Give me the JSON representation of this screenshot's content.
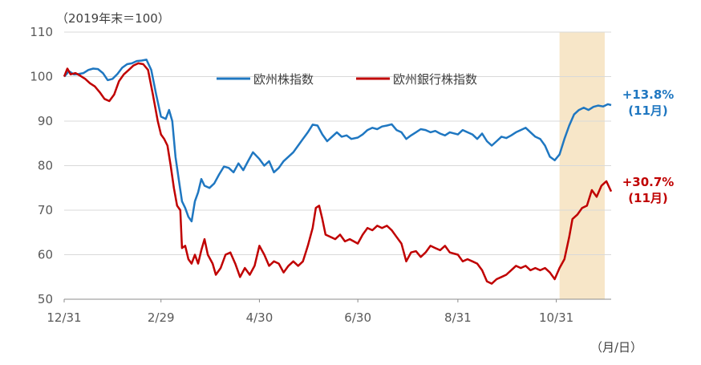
{
  "chart_data": {
    "type": "line",
    "y_unit_label": "（2019年末＝100）",
    "x_unit_label": "（月/日）",
    "ylim": [
      50,
      110
    ],
    "yticks": [
      "50",
      "60",
      "70",
      "80",
      "90",
      "100",
      "110"
    ],
    "xtick_labels": [
      "12/31",
      "2/29",
      "4/30",
      "6/30",
      "8/31",
      "10/31"
    ],
    "x_range": [
      "12/31",
      "12/04"
    ],
    "grid": "horizontal",
    "legend_position": "top-center",
    "highlight_period": {
      "start": "11/02",
      "end": "11/30",
      "color": "#f7e6c8"
    },
    "series": [
      {
        "name": "欧州株指数",
        "color": "#1f77c1",
        "points": [
          [
            "12/31",
            100.0
          ],
          [
            "01/03",
            101.2
          ],
          [
            "01/06",
            100.5
          ],
          [
            "01/09",
            100.6
          ],
          [
            "01/12",
            100.8
          ],
          [
            "01/15",
            101.5
          ],
          [
            "01/18",
            101.8
          ],
          [
            "01/21",
            101.7
          ],
          [
            "01/24",
            100.8
          ],
          [
            "01/27",
            99.2
          ],
          [
            "01/30",
            99.5
          ],
          [
            "02/02",
            100.6
          ],
          [
            "02/05",
            102.0
          ],
          [
            "02/08",
            102.8
          ],
          [
            "02/11",
            103.0
          ],
          [
            "02/14",
            103.5
          ],
          [
            "02/17",
            103.6
          ],
          [
            "02/20",
            103.8
          ],
          [
            "02/23",
            101.5
          ],
          [
            "02/26",
            96.0
          ],
          [
            "02/29",
            91.0
          ],
          [
            "03/03",
            90.5
          ],
          [
            "03/05",
            92.5
          ],
          [
            "03/07",
            90.0
          ],
          [
            "03/09",
            82.0
          ],
          [
            "03/11",
            77.0
          ],
          [
            "03/13",
            72.0
          ],
          [
            "03/15",
            70.5
          ],
          [
            "03/17",
            68.5
          ],
          [
            "03/19",
            67.5
          ],
          [
            "03/21",
            72.0
          ],
          [
            "03/23",
            74.0
          ],
          [
            "03/25",
            77.0
          ],
          [
            "03/27",
            75.5
          ],
          [
            "03/30",
            75.0
          ],
          [
            "04/02",
            76.0
          ],
          [
            "04/05",
            78.0
          ],
          [
            "04/08",
            79.8
          ],
          [
            "04/11",
            79.5
          ],
          [
            "04/14",
            78.5
          ],
          [
            "04/17",
            80.5
          ],
          [
            "04/20",
            79.0
          ],
          [
            "04/23",
            81.0
          ],
          [
            "04/26",
            83.0
          ],
          [
            "04/30",
            81.5
          ],
          [
            "05/03",
            80.0
          ],
          [
            "05/06",
            81.0
          ],
          [
            "05/09",
            78.5
          ],
          [
            "05/12",
            79.5
          ],
          [
            "05/15",
            81.0
          ],
          [
            "05/18",
            82.0
          ],
          [
            "05/21",
            83.0
          ],
          [
            "05/24",
            84.5
          ],
          [
            "05/27",
            86.0
          ],
          [
            "05/30",
            87.5
          ],
          [
            "06/02",
            89.2
          ],
          [
            "06/05",
            89.0
          ],
          [
            "06/08",
            87.0
          ],
          [
            "06/11",
            85.5
          ],
          [
            "06/14",
            86.5
          ],
          [
            "06/17",
            87.5
          ],
          [
            "06/20",
            86.5
          ],
          [
            "06/23",
            86.8
          ],
          [
            "06/26",
            86.0
          ],
          [
            "06/30",
            86.3
          ],
          [
            "07/03",
            87.0
          ],
          [
            "07/06",
            88.0
          ],
          [
            "07/09",
            88.5
          ],
          [
            "07/12",
            88.2
          ],
          [
            "07/15",
            88.8
          ],
          [
            "07/18",
            89.0
          ],
          [
            "07/21",
            89.3
          ],
          [
            "07/24",
            88.0
          ],
          [
            "07/27",
            87.5
          ],
          [
            "07/30",
            86.0
          ],
          [
            "08/02",
            86.8
          ],
          [
            "08/05",
            87.5
          ],
          [
            "08/08",
            88.2
          ],
          [
            "08/11",
            88.0
          ],
          [
            "08/14",
            87.5
          ],
          [
            "08/17",
            87.8
          ],
          [
            "08/20",
            87.2
          ],
          [
            "08/23",
            86.8
          ],
          [
            "08/26",
            87.5
          ],
          [
            "08/31",
            87.0
          ],
          [
            "09/03",
            88.0
          ],
          [
            "09/06",
            87.5
          ],
          [
            "09/09",
            87.0
          ],
          [
            "09/12",
            86.0
          ],
          [
            "09/15",
            87.2
          ],
          [
            "09/18",
            85.5
          ],
          [
            "09/21",
            84.5
          ],
          [
            "09/24",
            85.5
          ],
          [
            "09/27",
            86.5
          ],
          [
            "09/30",
            86.2
          ],
          [
            "10/03",
            86.8
          ],
          [
            "10/06",
            87.5
          ],
          [
            "10/09",
            88.0
          ],
          [
            "10/12",
            88.5
          ],
          [
            "10/15",
            87.5
          ],
          [
            "10/18",
            86.5
          ],
          [
            "10/21",
            86.0
          ],
          [
            "10/24",
            84.5
          ],
          [
            "10/27",
            82.0
          ],
          [
            "10/30",
            81.2
          ],
          [
            "11/02",
            82.5
          ],
          [
            "11/05",
            86.0
          ],
          [
            "11/08",
            89.0
          ],
          [
            "11/11",
            91.5
          ],
          [
            "11/14",
            92.5
          ],
          [
            "11/17",
            93.0
          ],
          [
            "11/20",
            92.5
          ],
          [
            "11/23",
            93.2
          ],
          [
            "11/26",
            93.5
          ],
          [
            "11/29",
            93.3
          ],
          [
            "12/02",
            93.8
          ],
          [
            "12/04",
            93.6
          ]
        ]
      },
      {
        "name": "欧州銀行株指数",
        "color": "#c00000",
        "points": [
          [
            "12/31",
            100.0
          ],
          [
            "01/02",
            101.8
          ],
          [
            "01/04",
            100.5
          ],
          [
            "01/07",
            100.8
          ],
          [
            "01/10",
            100.2
          ],
          [
            "01/13",
            99.5
          ],
          [
            "01/16",
            98.5
          ],
          [
            "01/19",
            97.8
          ],
          [
            "01/22",
            96.5
          ],
          [
            "01/25",
            95.0
          ],
          [
            "01/28",
            94.5
          ],
          [
            "01/31",
            96.0
          ],
          [
            "02/03",
            99.0
          ],
          [
            "02/06",
            100.5
          ],
          [
            "02/09",
            101.5
          ],
          [
            "02/12",
            102.5
          ],
          [
            "02/15",
            103.0
          ],
          [
            "02/18",
            102.8
          ],
          [
            "02/21",
            101.5
          ],
          [
            "02/24",
            96.0
          ],
          [
            "02/27",
            90.0
          ],
          [
            "02/29",
            87.0
          ],
          [
            "03/02",
            86.0
          ],
          [
            "03/04",
            84.5
          ],
          [
            "03/06",
            80.0
          ],
          [
            "03/08",
            75.0
          ],
          [
            "03/10",
            71.0
          ],
          [
            "03/12",
            70.0
          ],
          [
            "03/13",
            61.5
          ],
          [
            "03/15",
            62.0
          ],
          [
            "03/17",
            59.0
          ],
          [
            "03/19",
            58.0
          ],
          [
            "03/21",
            60.0
          ],
          [
            "03/23",
            58.0
          ],
          [
            "03/25",
            61.0
          ],
          [
            "03/27",
            63.5
          ],
          [
            "03/29",
            60.0
          ],
          [
            "04/01",
            58.0
          ],
          [
            "04/03",
            55.5
          ],
          [
            "04/06",
            57.0
          ],
          [
            "04/09",
            60.0
          ],
          [
            "04/12",
            60.5
          ],
          [
            "04/15",
            58.0
          ],
          [
            "04/18",
            55.0
          ],
          [
            "04/21",
            57.0
          ],
          [
            "04/24",
            55.5
          ],
          [
            "04/27",
            57.5
          ],
          [
            "04/30",
            62.0
          ],
          [
            "05/03",
            60.0
          ],
          [
            "05/06",
            57.5
          ],
          [
            "05/09",
            58.5
          ],
          [
            "05/12",
            58.0
          ],
          [
            "05/15",
            56.0
          ],
          [
            "05/18",
            57.5
          ],
          [
            "05/21",
            58.5
          ],
          [
            "05/24",
            57.5
          ],
          [
            "05/27",
            58.5
          ],
          [
            "05/30",
            62.0
          ],
          [
            "06/02",
            66.0
          ],
          [
            "06/04",
            70.5
          ],
          [
            "06/06",
            71.0
          ],
          [
            "06/08",
            68.0
          ],
          [
            "06/10",
            64.5
          ],
          [
            "06/13",
            64.0
          ],
          [
            "06/16",
            63.5
          ],
          [
            "06/19",
            64.5
          ],
          [
            "06/22",
            63.0
          ],
          [
            "06/25",
            63.5
          ],
          [
            "06/30",
            62.5
          ],
          [
            "07/03",
            64.5
          ],
          [
            "07/06",
            66.0
          ],
          [
            "07/09",
            65.5
          ],
          [
            "07/12",
            66.5
          ],
          [
            "07/15",
            66.0
          ],
          [
            "07/18",
            66.5
          ],
          [
            "07/21",
            65.5
          ],
          [
            "07/24",
            64.0
          ],
          [
            "07/27",
            62.5
          ],
          [
            "07/30",
            58.5
          ],
          [
            "08/02",
            60.5
          ],
          [
            "08/05",
            60.8
          ],
          [
            "08/08",
            59.5
          ],
          [
            "08/11",
            60.5
          ],
          [
            "08/14",
            62.0
          ],
          [
            "08/17",
            61.5
          ],
          [
            "08/20",
            61.0
          ],
          [
            "08/23",
            62.0
          ],
          [
            "08/26",
            60.5
          ],
          [
            "08/31",
            60.0
          ],
          [
            "09/03",
            58.5
          ],
          [
            "09/06",
            59.0
          ],
          [
            "09/09",
            58.5
          ],
          [
            "09/12",
            58.0
          ],
          [
            "09/15",
            56.5
          ],
          [
            "09/18",
            54.0
          ],
          [
            "09/21",
            53.5
          ],
          [
            "09/24",
            54.5
          ],
          [
            "09/27",
            55.0
          ],
          [
            "09/30",
            55.5
          ],
          [
            "10/03",
            56.5
          ],
          [
            "10/06",
            57.5
          ],
          [
            "10/09",
            57.0
          ],
          [
            "10/12",
            57.5
          ],
          [
            "10/15",
            56.5
          ],
          [
            "10/18",
            57.0
          ],
          [
            "10/21",
            56.5
          ],
          [
            "10/24",
            57.0
          ],
          [
            "10/27",
            56.0
          ],
          [
            "10/30",
            54.5
          ],
          [
            "11/02",
            57.0
          ],
          [
            "11/05",
            59.0
          ],
          [
            "11/08",
            64.0
          ],
          [
            "11/10",
            68.0
          ],
          [
            "11/13",
            69.0
          ],
          [
            "11/16",
            70.5
          ],
          [
            "11/19",
            71.0
          ],
          [
            "11/22",
            74.5
          ],
          [
            "11/25",
            73.0
          ],
          [
            "11/28",
            75.5
          ],
          [
            "12/01",
            76.5
          ],
          [
            "12/04",
            74.2
          ]
        ]
      }
    ],
    "annotations": [
      {
        "series": "欧州株指数",
        "text": "+13.8%",
        "subtext": "(11月)",
        "color": "#1f77c1"
      },
      {
        "series": "欧州銀行株指数",
        "text": "+30.7%",
        "subtext": "(11月)",
        "color": "#c00000"
      }
    ]
  }
}
